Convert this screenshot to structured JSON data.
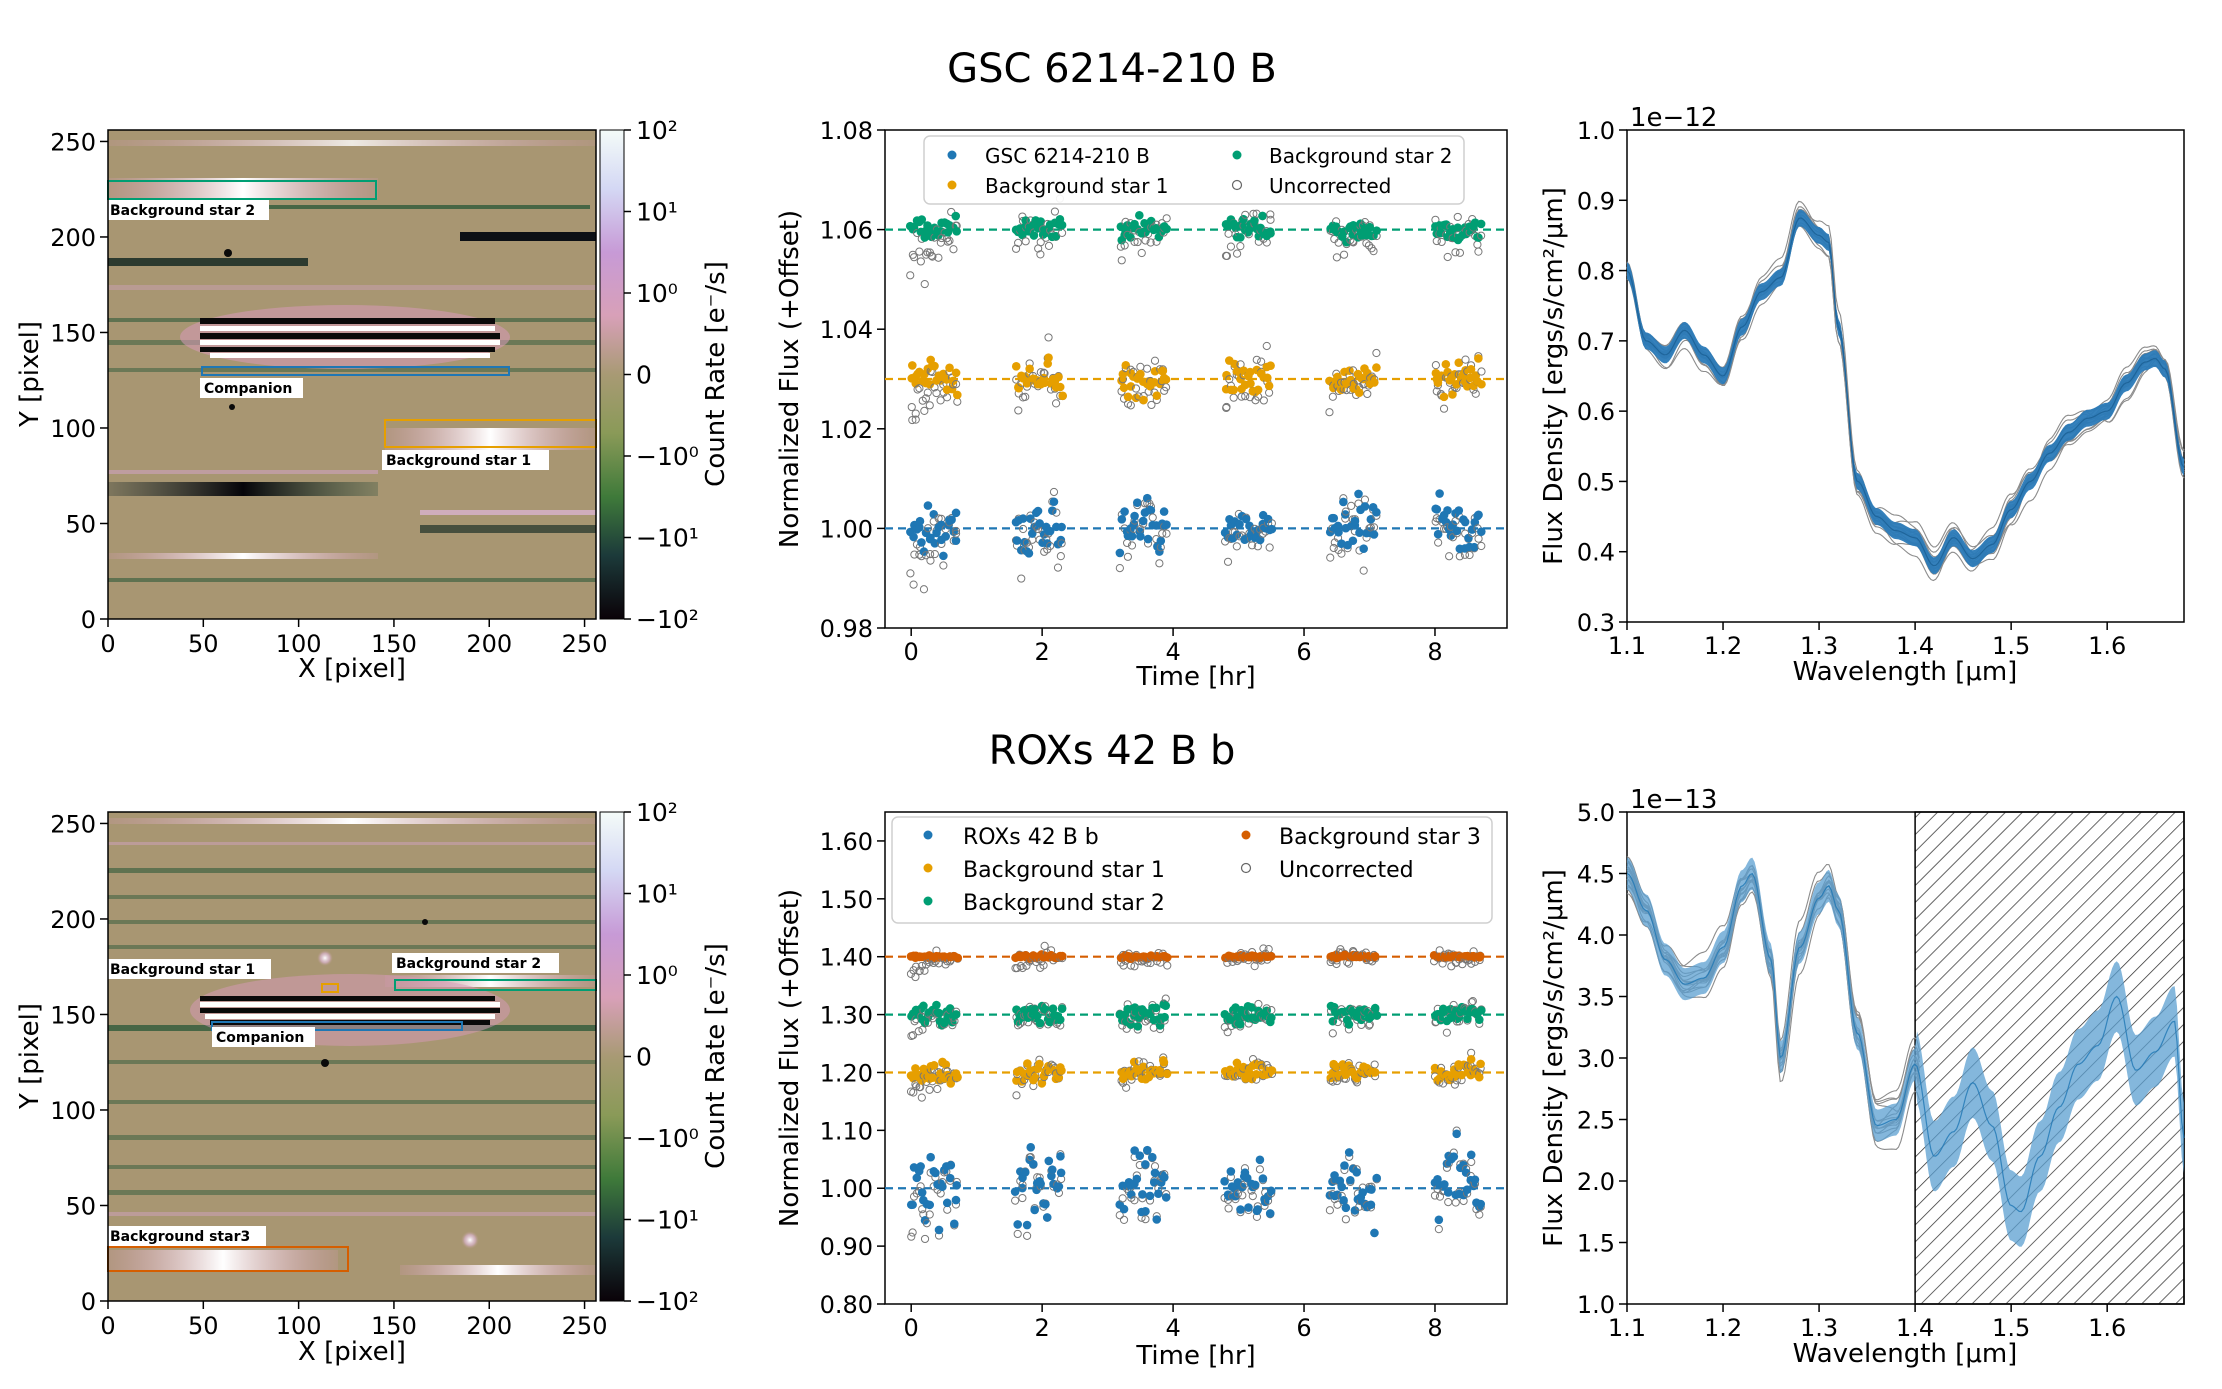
{
  "colors": {
    "companion": "#1f77b4",
    "bg1": "#e69f00",
    "bg2": "#009e73",
    "bg3": "#d55e00",
    "spec": "#1f77b4",
    "uncorrected": "#888888"
  },
  "chart_data": [
    {
      "type": "image",
      "name": "gsc-detector-image",
      "title": "GSC 6214-210 B",
      "xlabel": "X [pixel]",
      "ylabel": "Y [pixel]",
      "xlim": [
        0,
        256
      ],
      "ylim": [
        0,
        256
      ],
      "xticks": [
        0,
        50,
        100,
        150,
        200,
        250
      ],
      "yticks": [
        0,
        50,
        100,
        150,
        200,
        250
      ],
      "colorbar": {
        "label": "Count Rate [e⁻/s]",
        "ticks": [
          "10²",
          "10¹",
          "10⁰",
          "0",
          "−10⁰",
          "−10¹",
          "−10²"
        ]
      },
      "regions": [
        {
          "label": "Background star 2",
          "color": "#009e73",
          "x0": 0,
          "x1": 140,
          "y0": 220,
          "y1": 230
        },
        {
          "label": "Companion",
          "color": "#1f77b4",
          "x0": 50,
          "x1": 210,
          "y0": 127,
          "y1": 132
        },
        {
          "label": "Background star 1",
          "color": "#e69f00",
          "x0": 145,
          "x1": 256,
          "y0": 89,
          "y1": 103
        }
      ]
    },
    {
      "type": "scatter",
      "name": "gsc-lightcurve",
      "title": "GSC 6214-210 B",
      "xlabel": "Time [hr]",
      "ylabel": "Normalized Flux (+Offset)",
      "xlim": [
        -0.4,
        9.1
      ],
      "ylim": [
        0.98,
        1.08
      ],
      "xticks": [
        0,
        2,
        4,
        6,
        8
      ],
      "yticks": [
        "0.98",
        "1.00",
        "1.02",
        "1.04",
        "1.06",
        "1.08"
      ],
      "legend_position": "top",
      "series": [
        {
          "name": "GSC 6214-210 B",
          "color": "#1f77b4",
          "baseline": 1.0,
          "scatter": 0.0035
        },
        {
          "name": "Background star 1",
          "color": "#e69f00",
          "baseline": 1.03,
          "scatter": 0.0025
        },
        {
          "name": "Background star 2",
          "color": "#009e73",
          "baseline": 1.06,
          "scatter": 0.0015
        },
        {
          "name": "Uncorrected",
          "color": "#888888",
          "baseline": null,
          "scatter": 0.003
        }
      ],
      "orbits": [
        [
          0.0,
          0.7
        ],
        [
          1.6,
          2.3
        ],
        [
          3.2,
          3.9
        ],
        [
          4.8,
          5.5
        ],
        [
          6.4,
          7.1
        ],
        [
          8.0,
          8.7
        ]
      ],
      "ramp": {
        "amplitude": 0.015,
        "timescale_hr": 0.25
      }
    },
    {
      "type": "line",
      "name": "gsc-spectrum",
      "xlabel": "Wavelength [μm]",
      "ylabel": "Flux Density [ergs/s/cm²/μm]",
      "multiplier": "1e−12",
      "xlim": [
        1.1,
        1.68
      ],
      "ylim": [
        0.3,
        1.0
      ],
      "xticks": [
        "1.1",
        "1.2",
        "1.3",
        "1.4",
        "1.5",
        "1.6"
      ],
      "yticks": [
        "0.3",
        "0.4",
        "0.5",
        "0.6",
        "0.7",
        "0.8",
        "0.9",
        "1.0"
      ],
      "x": [
        1.1,
        1.12,
        1.14,
        1.16,
        1.18,
        1.2,
        1.22,
        1.24,
        1.26,
        1.28,
        1.3,
        1.31,
        1.32,
        1.34,
        1.36,
        1.38,
        1.4,
        1.42,
        1.44,
        1.46,
        1.48,
        1.5,
        1.52,
        1.54,
        1.56,
        1.58,
        1.6,
        1.62,
        1.64,
        1.65,
        1.66,
        1.68
      ],
      "y": [
        0.8,
        0.7,
        0.68,
        0.715,
        0.68,
        0.65,
        0.72,
        0.77,
        0.79,
        0.875,
        0.85,
        0.84,
        0.72,
        0.5,
        0.45,
        0.43,
        0.42,
        0.38,
        0.42,
        0.39,
        0.41,
        0.46,
        0.5,
        0.54,
        0.57,
        0.59,
        0.6,
        0.64,
        0.67,
        0.675,
        0.66,
        0.52
      ],
      "band_halfwidth": 0.012
    },
    {
      "type": "image",
      "name": "roxs-detector-image",
      "title": "ROXs 42 B b",
      "xlabel": "X [pixel]",
      "ylabel": "Y [pixel]",
      "xlim": [
        0,
        256
      ],
      "ylim": [
        0,
        256
      ],
      "xticks": [
        0,
        50,
        100,
        150,
        200,
        250
      ],
      "yticks": [
        0,
        50,
        100,
        150,
        200,
        250
      ],
      "colorbar": {
        "label": "Count Rate [e⁻/s]",
        "ticks": [
          "10²",
          "10¹",
          "10⁰",
          "0",
          "−10⁰",
          "−10¹",
          "−10²"
        ]
      },
      "regions": [
        {
          "label": "Background star 1",
          "color": "#e69f00",
          "x0": 115,
          "x1": 128,
          "y0": 160,
          "y1": 165
        },
        {
          "label": "Background star 2",
          "color": "#009e73",
          "x0": 150,
          "x1": 256,
          "y0": 163,
          "y1": 170
        },
        {
          "label": "Companion",
          "color": "#1f77b4",
          "x0": 55,
          "x1": 195,
          "y0": 144,
          "y1": 150
        },
        {
          "label": "Background star3",
          "color": "#d55e00",
          "x0": 0,
          "x1": 125,
          "y0": 16,
          "y1": 28
        }
      ]
    },
    {
      "type": "scatter",
      "name": "roxs-lightcurve",
      "title": "ROXs 42 B b",
      "xlabel": "Time [hr]",
      "ylabel": "Normalized Flux (+Offset)",
      "xlim": [
        -0.4,
        9.1
      ],
      "ylim": [
        0.8,
        1.65
      ],
      "xticks": [
        0,
        2,
        4,
        6,
        8
      ],
      "yticks": [
        "0.80",
        "0.90",
        "1.00",
        "1.10",
        "1.20",
        "1.30",
        "1.40",
        "1.50",
        "1.60"
      ],
      "legend_position": "top",
      "series": [
        {
          "name": "ROXs 42 B b",
          "color": "#1f77b4",
          "baseline": 1.0,
          "scatter": 0.045
        },
        {
          "name": "Background star 1",
          "color": "#e69f00",
          "baseline": 1.2,
          "scatter": 0.012
        },
        {
          "name": "Background star 2",
          "color": "#009e73",
          "baseline": 1.3,
          "scatter": 0.012
        },
        {
          "name": "Background star 3",
          "color": "#d55e00",
          "baseline": 1.4,
          "scatter": 0.002
        },
        {
          "name": "Uncorrected",
          "color": "#888888",
          "baseline": null,
          "scatter": 0.01
        }
      ],
      "orbits": [
        [
          0.0,
          0.7
        ],
        [
          1.6,
          2.3
        ],
        [
          3.2,
          3.9
        ],
        [
          4.8,
          5.5
        ],
        [
          6.4,
          7.1
        ],
        [
          8.0,
          8.7
        ]
      ],
      "ramp": {
        "amplitude": 0.05,
        "timescale_hr": 0.25
      }
    },
    {
      "type": "line",
      "name": "roxs-spectrum",
      "xlabel": "Wavelength [μm]",
      "ylabel": "Flux Density [ergs/s/cm²/μm]",
      "multiplier": "1e−13",
      "xlim": [
        1.1,
        1.68
      ],
      "ylim": [
        1.0,
        5.0
      ],
      "xticks": [
        "1.1",
        "1.2",
        "1.3",
        "1.4",
        "1.5",
        "1.6"
      ],
      "yticks": [
        "1.0",
        "1.5",
        "2.0",
        "2.5",
        "3.0",
        "3.5",
        "4.0",
        "4.5",
        "5.0"
      ],
      "x": [
        1.1,
        1.12,
        1.14,
        1.16,
        1.18,
        1.2,
        1.22,
        1.23,
        1.25,
        1.26,
        1.28,
        1.3,
        1.31,
        1.32,
        1.34,
        1.36,
        1.38,
        1.4,
        1.42,
        1.44,
        1.46,
        1.48,
        1.5,
        1.51,
        1.53,
        1.55,
        1.57,
        1.59,
        1.61,
        1.63,
        1.65,
        1.67,
        1.68
      ],
      "y": [
        4.5,
        4.2,
        3.8,
        3.6,
        3.65,
        3.9,
        4.4,
        4.5,
        3.8,
        3.0,
        3.9,
        4.3,
        4.4,
        4.2,
        3.2,
        2.45,
        2.5,
        2.95,
        2.2,
        2.4,
        2.8,
        2.45,
        1.8,
        1.75,
        2.2,
        2.6,
        2.95,
        3.1,
        3.5,
        2.9,
        3.05,
        3.3,
        2.35
      ],
      "band_halfwidth": 0.13,
      "hatched_region": [
        1.4,
        1.68
      ]
    }
  ]
}
